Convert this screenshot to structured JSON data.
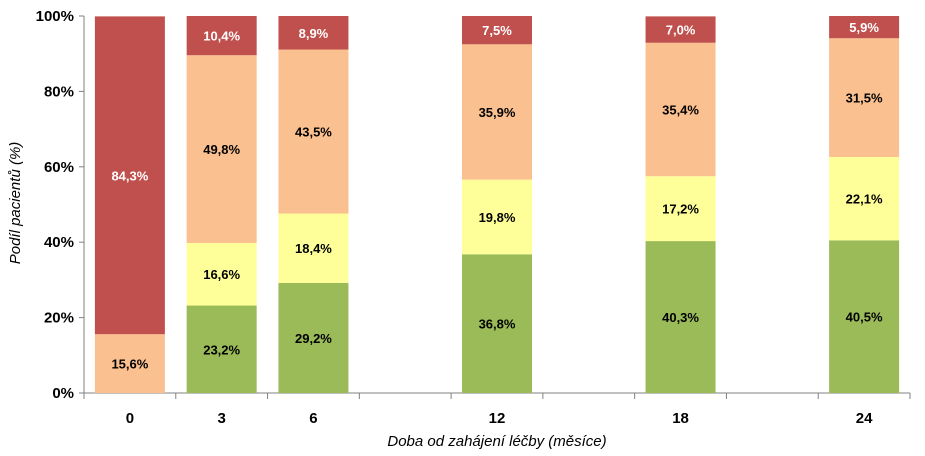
{
  "chart_data": {
    "type": "bar",
    "stacked": true,
    "xlabel": "Doba od zahájení léčby (měsíce)",
    "ylabel": "Podíl pacientů (%)",
    "ylim": [
      0,
      100
    ],
    "yticks": [
      "0%",
      "20%",
      "40%",
      "60%",
      "80%",
      "100%"
    ],
    "categories": [
      "0",
      "3",
      "6",
      "",
      "12",
      "",
      "18",
      "",
      "24"
    ],
    "series": [
      {
        "color": "#9BBB59",
        "values": [
          null,
          23.2,
          29.2,
          null,
          36.8,
          null,
          40.3,
          null,
          40.5
        ],
        "labels": [
          "",
          "23,2%",
          "29,2%",
          "",
          "36,8%",
          "",
          "40,3%",
          "",
          "40,5%"
        ]
      },
      {
        "color": "#FFFF99",
        "values": [
          null,
          16.6,
          18.4,
          null,
          19.8,
          null,
          17.2,
          null,
          22.1
        ],
        "labels": [
          "",
          "16,6%",
          "18,4%",
          "",
          "19,8%",
          "",
          "17,2%",
          "",
          "22,1%"
        ]
      },
      {
        "color": "#FAC090",
        "values": [
          15.6,
          49.8,
          43.5,
          null,
          35.9,
          null,
          35.4,
          null,
          31.5
        ],
        "labels": [
          "15,6%",
          "49,8%",
          "43,5%",
          "",
          "35,9%",
          "",
          "35,4%",
          "",
          "31,5%"
        ]
      },
      {
        "color": "#C0504D",
        "values": [
          84.3,
          10.4,
          8.9,
          null,
          7.5,
          null,
          7.0,
          null,
          5.9
        ],
        "labels": [
          "84,3%",
          "10,4%",
          "8,9%",
          "",
          "7,5%",
          "",
          "7,0%",
          "",
          "5,9%"
        ]
      }
    ],
    "grid": false,
    "legend": "none"
  }
}
